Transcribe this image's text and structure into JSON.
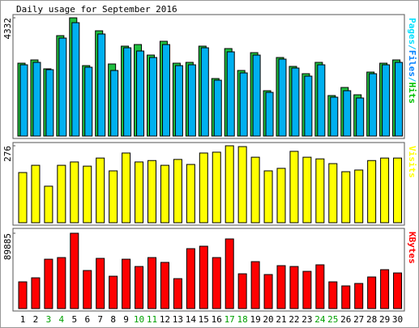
{
  "chart_data": [
    {
      "type": "bar",
      "title": "Daily usage for September 2016",
      "ylim": [
        0,
        4332
      ],
      "yticks": [
        4332
      ],
      "label_parts": [
        {
          "text": "Pages",
          "color": "#00e0ff"
        },
        {
          "text": "/",
          "color": "#00c0ff"
        },
        {
          "text": "Files",
          "color": "#0080ff"
        },
        {
          "text": "/",
          "color": "#00c0ff"
        },
        {
          "text": "Hits",
          "color": "#00c000"
        }
      ],
      "series": [
        {
          "name": "Hits",
          "color": "#20c040",
          "values": [
            2670,
            2789,
            2463,
            3679,
            4332,
            2581,
            3857,
            2641,
            3294,
            3353,
            2967,
            3472,
            2670,
            2700,
            3294,
            2107,
            3205,
            2403,
            3056,
            1662,
            2878,
            2552,
            2285,
            2700,
            1484,
            1780,
            1513,
            2344,
            2670,
            2789
          ]
        },
        {
          "name": "Files",
          "color": "#00b0f0",
          "values": [
            2611,
            2700,
            2433,
            3590,
            4154,
            2522,
            3739,
            2403,
            3234,
            3116,
            2878,
            3353,
            2581,
            2611,
            3234,
            2047,
            3086,
            2314,
            2967,
            1602,
            2819,
            2492,
            2196,
            2611,
            1424,
            1662,
            1395,
            2285,
            2611,
            2700
          ]
        }
      ]
    },
    {
      "type": "bar",
      "ylim": [
        0,
        276
      ],
      "yticks": [
        276
      ],
      "series": [
        {
          "name": "Visits",
          "color": "#ffff00",
          "values": [
            180,
            206,
            131,
            206,
            218,
            203,
            232,
            186,
            250,
            218,
            223,
            206,
            227,
            209,
            250,
            253,
            276,
            273,
            235,
            186,
            195,
            256,
            235,
            229,
            212,
            183,
            189,
            223,
            232,
            232
          ]
        }
      ]
    },
    {
      "type": "bar",
      "ylim": [
        0,
        89885
      ],
      "yticks": [
        89885
      ],
      "categories": [
        "1",
        "2",
        "3",
        "4",
        "5",
        "6",
        "7",
        "8",
        "9",
        "10",
        "11",
        "12",
        "13",
        "14",
        "15",
        "16",
        "17",
        "18",
        "19",
        "20",
        "21",
        "22",
        "23",
        "24",
        "25",
        "26",
        "27",
        "28",
        "29",
        "30"
      ],
      "category_colors": [
        "#000",
        "#000",
        "#00a000",
        "#00a000",
        "#000",
        "#000",
        "#000",
        "#000",
        "#000",
        "#00a000",
        "#00a000",
        "#000",
        "#000",
        "#000",
        "#000",
        "#000",
        "#00a000",
        "#00a000",
        "#000",
        "#000",
        "#000",
        "#000",
        "#000",
        "#00a000",
        "#00a000",
        "#000",
        "#000",
        "#000",
        "#000",
        "#000"
      ],
      "series": [
        {
          "name": "KBytes",
          "color": "#ff0000",
          "values": [
            31880,
            36700,
            58900,
            60850,
            89885,
            45400,
            59900,
            38600,
            58900,
            50200,
            60850,
            55100,
            35700,
            71500,
            74400,
            60850,
            83100,
            41500,
            56000,
            40600,
            51200,
            50200,
            44400,
            52200,
            31880,
            27050,
            29950,
            37700,
            46400,
            42500
          ]
        }
      ]
    }
  ]
}
